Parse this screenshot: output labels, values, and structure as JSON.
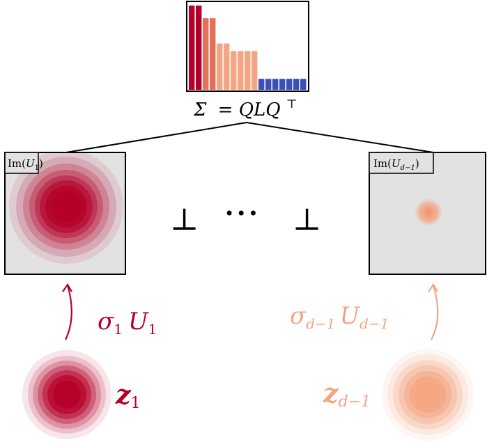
{
  "top_chart": {
    "equation_left": "Σ",
    "equation_right": "= QLQ",
    "transpose_mark": "⊤",
    "bar_values": [
      10,
      10,
      8.5,
      8.5,
      5.5,
      5.5,
      4.6,
      4.6,
      4.6,
      4.6,
      1.3,
      1.3,
      1.3,
      1.3,
      1.3,
      1.3,
      1.3
    ],
    "bar_colors": [
      "#b5002a",
      "#b5002a",
      "#e56f58",
      "#e56f58",
      "#f4a582",
      "#f4a582",
      "#f4a582",
      "#f4a582",
      "#f4a582",
      "#f4a582",
      "#3a50b8",
      "#3a50b8",
      "#3a50b8",
      "#3a50b8",
      "#3a50b8",
      "#3a50b8",
      "#3a50b8"
    ]
  },
  "left_panel": {
    "label_fn": "Im(",
    "label_var": "U",
    "label_sub": "1",
    "label_close": ")",
    "blob_color": "#b5002a"
  },
  "right_panel": {
    "label_fn": "Im(",
    "label_var": "U",
    "label_sub": "d−1",
    "label_close": ")",
    "blob_color": "#f4a582"
  },
  "separators": {
    "perp_left": "⊥",
    "dots": "•••",
    "perp_right": "⊥"
  },
  "left_map": {
    "sigma": "σ",
    "sigma_sub": "1",
    "u": "U",
    "u_sub": "1",
    "color": "#b5002a"
  },
  "right_map": {
    "sigma": "σ",
    "sigma_sub": "d−1",
    "u": "U",
    "u_sub": "d−1",
    "color": "#f4a582"
  },
  "left_latent": {
    "z": "z",
    "z_sub": "1",
    "color": "#b5002a"
  },
  "right_latent": {
    "z": "z",
    "z_sub": "d−1",
    "color": "#f4a582"
  },
  "colors": {
    "panel_bg": "#e2e2e2",
    "frame": "#000000"
  }
}
